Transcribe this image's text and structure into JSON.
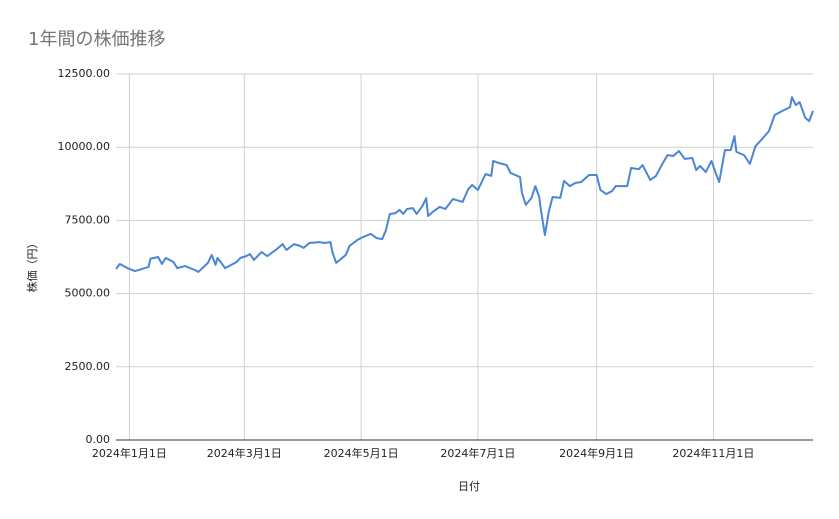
{
  "chart_data": {
    "type": "line",
    "title": "1年間の株価推移",
    "x_label": "日付",
    "y_label": "株価（円）",
    "color": "#4a86d4",
    "grid": true,
    "xlim": [
      "2023-12-25",
      "2024-12-23"
    ],
    "xticks": [
      {
        "value": "2024-01-01",
        "label": "2024年1月1日"
      },
      {
        "value": "2024-03-01",
        "label": "2024年3月1日"
      },
      {
        "value": "2024-05-01",
        "label": "2024年5月1日"
      },
      {
        "value": "2024-07-01",
        "label": "2024年7月1日"
      },
      {
        "value": "2024-09-01",
        "label": "2024年9月1日"
      },
      {
        "value": "2024-11-01",
        "label": "2024年11月1日"
      }
    ],
    "ylim": [
      0,
      12500
    ],
    "yticks": [
      {
        "value": 0,
        "label": "0.00"
      },
      {
        "value": 2500,
        "label": "2500.00"
      },
      {
        "value": 5000,
        "label": "5000.00"
      },
      {
        "value": 7500,
        "label": "7500.00"
      },
      {
        "value": 10000,
        "label": "10000.00"
      },
      {
        "value": 12500,
        "label": "12500.00"
      }
    ],
    "x": [
      "2023-12-25",
      "2023-12-27",
      "2023-12-31",
      "2024-01-04",
      "2024-01-11",
      "2024-01-12",
      "2024-01-16",
      "2024-01-18",
      "2024-01-20",
      "2024-01-24",
      "2024-01-26",
      "2024-01-30",
      "2024-02-04",
      "2024-02-06",
      "2024-02-11",
      "2024-02-13",
      "2024-02-15",
      "2024-02-16",
      "2024-02-20",
      "2024-02-26",
      "2024-02-28",
      "2024-03-02",
      "2024-03-04",
      "2024-03-06",
      "2024-03-10",
      "2024-03-13",
      "2024-03-18",
      "2024-03-21",
      "2024-03-23",
      "2024-03-27",
      "2024-03-30",
      "2024-04-01",
      "2024-04-04",
      "2024-04-09",
      "2024-04-12",
      "2024-04-15",
      "2024-04-16",
      "2024-04-18",
      "2024-04-23",
      "2024-04-25",
      "2024-04-29",
      "2024-05-01",
      "2024-05-06",
      "2024-05-09",
      "2024-05-12",
      "2024-05-14",
      "2024-05-16",
      "2024-05-19",
      "2024-05-21",
      "2024-05-23",
      "2024-05-25",
      "2024-05-28",
      "2024-05-30",
      "2024-06-02",
      "2024-06-04",
      "2024-06-05",
      "2024-06-08",
      "2024-06-11",
      "2024-06-14",
      "2024-06-18",
      "2024-06-23",
      "2024-06-26",
      "2024-06-28",
      "2024-07-01",
      "2024-07-05",
      "2024-07-08",
      "2024-07-09",
      "2024-07-12",
      "2024-07-16",
      "2024-07-18",
      "2024-07-23",
      "2024-07-24",
      "2024-07-26",
      "2024-07-29",
      "2024-07-31",
      "2024-08-02",
      "2024-08-03",
      "2024-08-05",
      "2024-08-07",
      "2024-08-09",
      "2024-08-13",
      "2024-08-15",
      "2024-08-18",
      "2024-08-21",
      "2024-08-24",
      "2024-08-28",
      "2024-09-01",
      "2024-09-03",
      "2024-09-06",
      "2024-09-09",
      "2024-09-11",
      "2024-09-13",
      "2024-09-17",
      "2024-09-19",
      "2024-09-23",
      "2024-09-25",
      "2024-09-29",
      "2024-10-02",
      "2024-10-05",
      "2024-10-08",
      "2024-10-11",
      "2024-10-14",
      "2024-10-17",
      "2024-10-21",
      "2024-10-23",
      "2024-10-25",
      "2024-10-28",
      "2024-10-31",
      "2024-11-02",
      "2024-11-04",
      "2024-11-07",
      "2024-11-10",
      "2024-11-12",
      "2024-11-13",
      "2024-11-17",
      "2024-11-20",
      "2024-11-23",
      "2024-11-26",
      "2024-11-30",
      "2024-12-03",
      "2024-12-07",
      "2024-12-11",
      "2024-12-12",
      "2024-12-14",
      "2024-12-16",
      "2024-12-19",
      "2024-12-21",
      "2024-12-23"
    ],
    "values": [
      5840,
      6010,
      5870,
      5770,
      5910,
      6190,
      6250,
      6010,
      6220,
      6080,
      5870,
      5940,
      5810,
      5740,
      6050,
      6320,
      5980,
      6220,
      5870,
      6080,
      6220,
      6280,
      6350,
      6150,
      6420,
      6280,
      6520,
      6690,
      6490,
      6690,
      6630,
      6560,
      6730,
      6760,
      6730,
      6760,
      6420,
      6050,
      6320,
      6630,
      6830,
      6900,
      7040,
      6900,
      6860,
      7170,
      7720,
      7750,
      7860,
      7720,
      7890,
      7920,
      7720,
      7990,
      8260,
      7650,
      7820,
      7960,
      7890,
      8230,
      8130,
      8570,
      8710,
      8540,
      9080,
      9020,
      9530,
      9460,
      9390,
      9120,
      8980,
      8440,
      8030,
      8270,
      8670,
      8300,
      7820,
      7000,
      7790,
      8300,
      8270,
      8850,
      8670,
      8780,
      8810,
      9050,
      9050,
      8540,
      8400,
      8500,
      8670,
      8670,
      8670,
      9290,
      9250,
      9390,
      8880,
      9020,
      9390,
      9730,
      9700,
      9870,
      9600,
      9630,
      9220,
      9360,
      9150,
      9530,
      9150,
      8810,
      9900,
      9900,
      10380,
      9840,
      9730,
      9430,
      10040,
      10250,
      10550,
      11100,
      11240,
      11370,
      11710,
      11440,
      11540,
      11000,
      10890,
      11240
    ]
  }
}
